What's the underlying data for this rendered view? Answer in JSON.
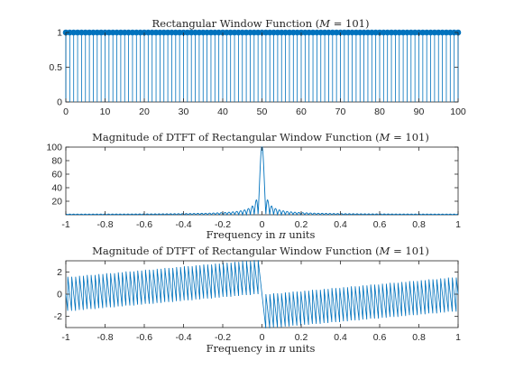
{
  "colors": {
    "series": "#0072bd",
    "axes": "#262626"
  },
  "chart_data": [
    {
      "type": "stem",
      "title": "Rectangular Window Function (M = 101)",
      "title_parts": [
        "Rectangular Window Function (",
        "M",
        " = 101)"
      ],
      "xlabel": "",
      "ylabel": "",
      "xlim": [
        0,
        100
      ],
      "ylim": [
        0,
        1
      ],
      "xticks": [
        0,
        10,
        20,
        30,
        40,
        50,
        60,
        70,
        80,
        90,
        100
      ],
      "xtick_labels": [
        "0",
        "10",
        "20",
        "30",
        "40",
        "50",
        "60",
        "70",
        "80",
        "90",
        "100"
      ],
      "yticks": [
        0,
        0.5,
        1
      ],
      "ytick_labels": [
        "0",
        "0.5",
        "1"
      ],
      "n_range": [
        0,
        100
      ],
      "value": 1,
      "grid": false
    },
    {
      "type": "line",
      "title": "Magnitude of DTFT of Rectangular Window Function (M = 101)",
      "title_parts": [
        "Magnitude of DTFT of Rectangular Window Function (",
        "M",
        " = 101)"
      ],
      "xlabel": "Frequency in π units",
      "xlabel_parts": [
        "Frequency in ",
        "π",
        " units"
      ],
      "ylabel": "",
      "xlim": [
        -1,
        1
      ],
      "ylim": [
        0,
        100
      ],
      "xticks": [
        -1,
        -0.8,
        -0.6,
        -0.4,
        -0.2,
        0,
        0.2,
        0.4,
        0.6,
        0.8,
        1
      ],
      "xtick_labels": [
        "-1",
        "-0.8",
        "-0.6",
        "-0.4",
        "-0.2",
        "0",
        "0.2",
        "0.4",
        "0.6",
        "0.8",
        "1"
      ],
      "yticks": [
        20,
        40,
        60,
        80,
        100
      ],
      "ytick_labels": [
        "20",
        "40",
        "60",
        "80",
        "100"
      ],
      "peak": 101,
      "grid": false
    },
    {
      "type": "line",
      "title": "Magnitude of DTFT of Rectangular Window Function (M = 101)",
      "title_parts": [
        "Magnitude of DTFT of Rectangular Window Function (",
        "M",
        " = 101)"
      ],
      "xlabel": "Frequency in π units",
      "xlabel_parts": [
        "Frequency in ",
        "π",
        " units"
      ],
      "ylabel": "",
      "xlim": [
        -1,
        1
      ],
      "ylim": [
        -3,
        3
      ],
      "xticks": [
        -1,
        -0.8,
        -0.6,
        -0.4,
        -0.2,
        0,
        0.2,
        0.4,
        0.6,
        0.8,
        1
      ],
      "xtick_labels": [
        "-1",
        "-0.8",
        "-0.6",
        "-0.4",
        "-0.2",
        "0",
        "0.2",
        "0.4",
        "0.6",
        "0.8",
        "1"
      ],
      "yticks": [
        -2,
        0,
        2
      ],
      "ytick_labels": [
        "-2",
        "0",
        "2"
      ],
      "grid": false
    }
  ]
}
